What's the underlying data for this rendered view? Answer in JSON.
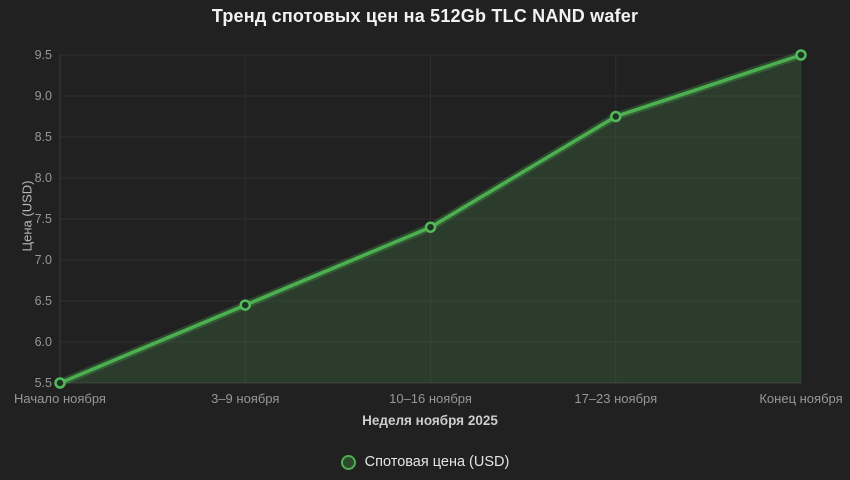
{
  "title": "Тренд спотовых цен на 512Gb TLC NAND wafer",
  "colors": {
    "background": "#212121",
    "line": "#4caf50",
    "line_glow": "rgba(76,175,80,0.28)",
    "area_fill": "rgba(90,180,95,0.18)",
    "marker_fill": "#1c3520",
    "marker_stroke": "#55b85c",
    "grid": "#2e2e2e",
    "axis": "#3c3c3c",
    "tick_text": "#979797",
    "axis_title_text": "#cdcdcd",
    "title_text": "#f2f2f2",
    "legend_text": "#e4e4e4"
  },
  "chart_data": {
    "type": "line",
    "title": "Тренд спотовых цен на 512Gb TLC NAND wafer",
    "xlabel": "Неделя ноября 2025",
    "ylabel": "Цена (USD)",
    "categories": [
      "Начало ноября",
      "3–9 ноября",
      "10–16 ноября",
      "17–23 ноября",
      "Конец ноября"
    ],
    "series": [
      {
        "name": "Спотовая цена (USD)",
        "values": [
          5.5,
          6.45,
          7.4,
          8.75,
          9.5
        ]
      }
    ],
    "ylim": [
      5.5,
      9.5
    ],
    "yticks": [
      5.5,
      6.0,
      6.5,
      7.0,
      7.5,
      8.0,
      8.5,
      9.0,
      9.5
    ],
    "ytick_labels": [
      "5.5",
      "6.0",
      "6.5",
      "7.0",
      "7.5",
      "8.0",
      "8.5",
      "9.0",
      "9.5"
    ],
    "grid": true,
    "area": true,
    "legend_position": "bottom",
    "legend_label": "Спотовая цена (USD)"
  }
}
